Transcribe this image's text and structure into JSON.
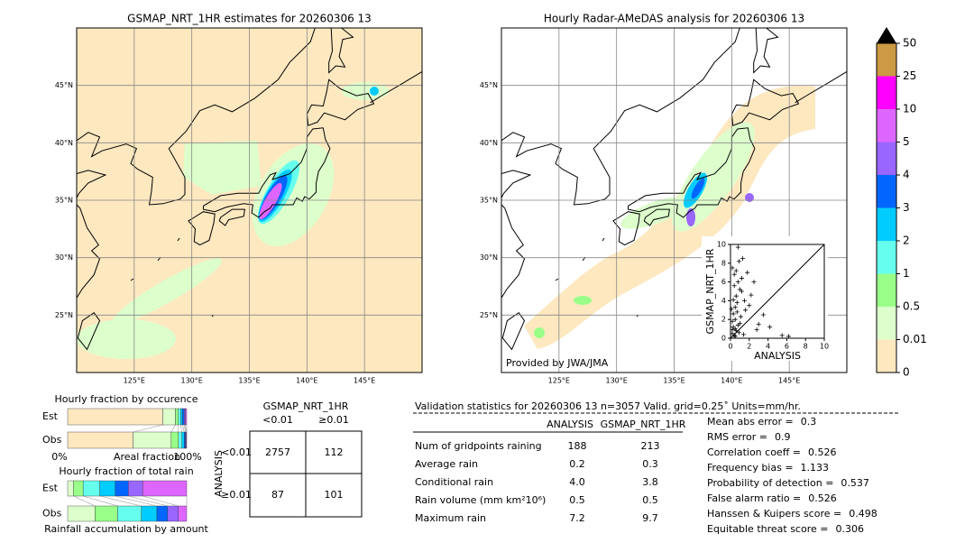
{
  "map_left": {
    "title": "GSMAP_NRT_1HR estimates for 20260306 13",
    "lonlim": [
      120,
      150
    ],
    "latlim": [
      20,
      50
    ],
    "lat_ticks": [
      {
        "value": 45,
        "label": "45°N"
      },
      {
        "value": 40,
        "label": "40°N"
      },
      {
        "value": 35,
        "label": "35°N"
      },
      {
        "value": 30,
        "label": "30°N"
      },
      {
        "value": 25,
        "label": "25°N"
      }
    ],
    "lon_ticks": [
      {
        "value": 125,
        "label": "125°E"
      },
      {
        "value": 130,
        "label": "130°E"
      },
      {
        "value": 135,
        "label": "135°E"
      },
      {
        "value": 140,
        "label": "140°E"
      },
      {
        "value": 145,
        "label": "145°E"
      }
    ]
  },
  "map_right": {
    "title": "Hourly Radar-AMeDAS analysis for 20260306 13",
    "credit": "Provided by JWA/JMA",
    "lonlim": [
      120,
      150
    ],
    "latlim": [
      20,
      50
    ],
    "lat_ticks": [
      {
        "value": 45,
        "label": "45°N"
      },
      {
        "value": 40,
        "label": "40°N"
      },
      {
        "value": 35,
        "label": "35°N"
      },
      {
        "value": 30,
        "label": "30°N"
      },
      {
        "value": 25,
        "label": "25°N"
      }
    ],
    "lon_ticks": [
      {
        "value": 125,
        "label": "125°E"
      },
      {
        "value": 130,
        "label": "130°E"
      },
      {
        "value": 135,
        "label": "135°E"
      },
      {
        "value": 140,
        "label": "140°E"
      },
      {
        "value": 145,
        "label": "145°E"
      }
    ]
  },
  "colorbar": {
    "levels": [
      0,
      0.01,
      0.5,
      1,
      2,
      3,
      4,
      5,
      10,
      25,
      50
    ],
    "colors": [
      "#fde8c0",
      "#ddffcc",
      "#99ff88",
      "#66ffee",
      "#00ccff",
      "#0066ff",
      "#9966ff",
      "#dd66ff",
      "#ff00ff",
      "#cc9944"
    ]
  },
  "scatter": {
    "type": "scatter",
    "xlabel": "ANALYSIS",
    "ylabel": "GSMAP_NRT_1HR",
    "xlim": [
      0,
      10
    ],
    "ylim": [
      0,
      10
    ],
    "xticks": [
      0,
      2,
      4,
      6,
      8,
      10
    ],
    "yticks": [
      0,
      2,
      4,
      6,
      8,
      10
    ],
    "x": [
      0.2,
      0.3,
      0.5,
      0.1,
      0.4,
      0.6,
      0.8,
      1.0,
      0.2,
      0.5,
      0.3,
      0.7,
      1.2,
      0.9,
      0.4,
      1.5,
      0.6,
      0.2,
      1.1,
      0.8,
      1.8,
      2.0,
      2.5,
      3.0,
      2.2,
      1.4,
      0.5,
      0.3,
      1.0,
      0.7,
      1.3,
      0.9,
      0.4,
      0.6,
      3.5,
      4.2,
      2.8,
      5.5,
      6.2,
      1.6,
      0.8,
      1.2,
      0.2,
      0.5
    ],
    "y": [
      0.5,
      1.2,
      2.0,
      3.1,
      0.3,
      4.5,
      6.0,
      5.2,
      7.5,
      1.0,
      2.6,
      3.8,
      5.0,
      8.2,
      6.8,
      4.0,
      0.8,
      1.8,
      2.3,
      9.7,
      7.0,
      3.5,
      6.0,
      1.5,
      4.6,
      0.4,
      0.2,
      4.1,
      1.6,
      2.8,
      8.5,
      0.6,
      5.6,
      7.2,
      2.5,
      1.2,
      0.9,
      0.3,
      0.2,
      3.0,
      1.4,
      6.4,
      0.9,
      3.3
    ]
  },
  "occurrence": {
    "title": "Hourly fraction by occurence",
    "xlim": [
      0,
      100
    ],
    "axis_left": "0%",
    "axis_mid": "Areal fraction",
    "axis_right": "100%",
    "colors": [
      "#fde8c0",
      "#ddffcc",
      "#99ff88",
      "#66ffee",
      "#00ccff",
      "#0066ff",
      "#9966ff",
      "#dd66ff"
    ],
    "rows": [
      {
        "name": "Est",
        "values": [
          80,
          10.5,
          2.5,
          2,
          1.5,
          1.5,
          1,
          1
        ]
      },
      {
        "name": "Obs",
        "values": [
          55,
          32,
          6,
          3,
          2,
          1,
          0.5,
          0.5
        ]
      }
    ]
  },
  "total_rain": {
    "title": "Hourly fraction of total rain",
    "xlim": [
      0,
      100
    ],
    "xlabel": "Rainfall accumulation by amount",
    "colors": [
      "#ddffcc",
      "#99ff88",
      "#66ffee",
      "#00ccff",
      "#0066ff",
      "#9966ff",
      "#dd66ff"
    ],
    "rows": [
      {
        "name": "Est",
        "values": [
          5,
          8,
          14,
          13,
          11,
          12,
          37
        ]
      },
      {
        "name": "Obs",
        "values": [
          23,
          19,
          20,
          13,
          9,
          9,
          7
        ]
      }
    ]
  },
  "contingency": {
    "title": "GSMAP_NRT_1HR",
    "col_labels": [
      "<0.01",
      "≥0.01"
    ],
    "row_title": "ANALYSIS",
    "row_labels": [
      "<0.01",
      "≥0.01"
    ],
    "cells": [
      [
        "2757",
        "112"
      ],
      [
        "87",
        "101"
      ]
    ]
  },
  "validation": {
    "title": "Validation statistics for 20260306 13  n=3057 Valid. grid=0.25˚ Units=mm/hr.",
    "columns": [
      "ANALYSIS",
      "GSMAP_NRT_1HR"
    ],
    "rows": [
      {
        "label": "Num of gridpoints raining",
        "values": [
          "188",
          "213"
        ]
      },
      {
        "label": "Average rain",
        "values": [
          "0.2",
          "0.3"
        ]
      },
      {
        "label": "Conditional rain",
        "values": [
          "4.0",
          "3.8"
        ]
      },
      {
        "label": "Rain volume (mm km²10⁶)",
        "values": [
          "0.5",
          "0.5"
        ]
      },
      {
        "label": "Maximum rain",
        "values": [
          "7.2",
          "9.7"
        ]
      }
    ]
  },
  "scores": [
    {
      "label": "Mean abs error =",
      "value": "0.3"
    },
    {
      "label": "RMS error =",
      "value": "0.9"
    },
    {
      "label": "Correlation coeff =",
      "value": "0.526"
    },
    {
      "label": "Frequency bias =",
      "value": "1.133"
    },
    {
      "label": "Probability of detection =",
      "value": "0.537"
    },
    {
      "label": "False alarm ratio =",
      "value": "0.526"
    },
    {
      "label": "Hanssen & Kuipers score =",
      "value": "0.498"
    },
    {
      "label": "Equitable threat score =",
      "value": "0.306"
    }
  ]
}
